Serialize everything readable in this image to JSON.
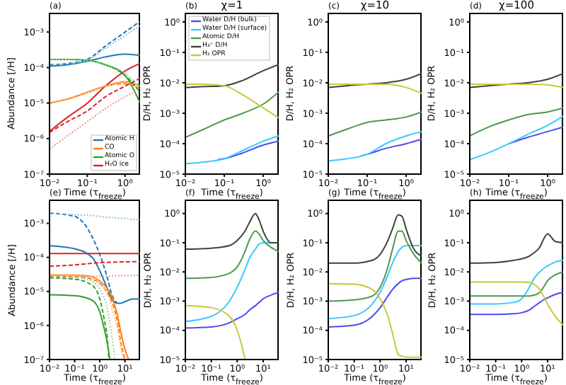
{
  "chart_data": [
    {
      "type": "line",
      "annotations": [
        "(a)"
      ],
      "xlabel": "Time (τ$_{freeze}$)",
      "ylabel": "Abundance [/H]",
      "log": "xy",
      "legend": "bottom right",
      "xlim": [
        0.01,
        2.5
      ],
      "xticks": [
        {
          "value": 0.01,
          "label": "10⁻²"
        },
        {
          "value": 0.1,
          "label": "10⁻¹"
        },
        {
          "value": 1,
          "label": "10⁰"
        }
      ],
      "ylim": [
        1e-07,
        0.0035
      ],
      "yticks": [
        {
          "value": 1e-07,
          "label": "10⁻⁷"
        },
        {
          "value": 1e-06,
          "label": "10⁻⁶"
        },
        {
          "value": 1e-05,
          "label": "10⁻⁵"
        },
        {
          "value": 0.0001,
          "label": "10⁻⁴"
        },
        {
          "value": 0.001,
          "label": "10⁻³"
        }
      ],
      "x": [
        0.01,
        0.03,
        0.1,
        0.3,
        1,
        2.5
      ],
      "series": [
        {
          "name": "Atomic H",
          "color": "#1f77b4",
          "values": [
            0.00011,
            0.00012,
            0.00015,
            0.0002,
            0.00024,
            0.00022
          ]
        },
        {
          "name": "CO",
          "color": "#ff7f0e",
          "values": [
            1e-05,
            1.3e-05,
            2e-05,
            3e-05,
            4e-05,
            3e-05
          ]
        },
        {
          "name": "Atomic O",
          "color": "#2ca02c",
          "values": [
            0.00017,
            0.00017,
            0.00016,
            0.00012,
            6e-05,
            1e-05
          ]
        },
        {
          "name": "H₂O ice",
          "color": "#d62728",
          "values": [
            1.6e-06,
            4e-06,
            1e-05,
            3e-05,
            8e-05,
            0.00013
          ]
        },
        {
          "color": "#1f77b4",
          "line_style": "dashed",
          "values": [
            0.00012,
            0.00013,
            0.00017,
            0.0004,
            0.001,
            0.002
          ]
        },
        {
          "color": "#8ec1e6",
          "line_style": "dotted",
          "values": [
            0.00012,
            0.00013,
            0.00016,
            0.00035,
            0.0008,
            0.0015
          ]
        },
        {
          "color": "#ff7f0e",
          "line_style": "dashed",
          "values": [
            1e-05,
            1.3e-05,
            2e-05,
            3e-05,
            3.5e-05,
            2.5e-05
          ]
        },
        {
          "color": "#ffbf86",
          "line_style": "dotted",
          "values": [
            1e-05,
            1.3e-05,
            2e-05,
            3e-05,
            3.8e-05,
            3.5e-05
          ]
        },
        {
          "color": "#2ca02c",
          "line_style": "dashed",
          "values": [
            0.00017,
            0.00017,
            0.00016,
            0.00012,
            6e-05,
            2e-05
          ]
        },
        {
          "color": "#96d294",
          "line_style": "dotted",
          "values": [
            0.00017,
            0.00017,
            0.00016,
            0.00012,
            7e-05,
            2.5e-05
          ]
        },
        {
          "color": "#d62728",
          "line_style": "dashed",
          "values": [
            1.5e-06,
            3e-06,
            6e-06,
            1.5e-05,
            3e-05,
            5e-05
          ]
        },
        {
          "color": "#eb9394",
          "line_style": "dotted",
          "values": [
            5e-07,
            1.2e-06,
            3e-06,
            7e-06,
            1.5e-05,
            2.5e-05
          ]
        }
      ]
    },
    {
      "type": "line",
      "title": "χ=1",
      "annotations": [
        "(b)"
      ],
      "xlabel": "Time (τ$_{freeze}$)",
      "ylabel": "D/H, H₂ OPR",
      "log": "xy",
      "legend": "top left",
      "xlim": [
        0.01,
        2.5
      ],
      "xticks": [
        {
          "value": 0.01,
          "label": "10⁻²"
        },
        {
          "value": 0.1,
          "label": "10⁻¹"
        },
        {
          "value": 1,
          "label": "10⁰"
        }
      ],
      "ylim": [
        1e-05,
        2
      ],
      "yticks": [
        {
          "value": 1e-05,
          "label": "10⁻⁵"
        },
        {
          "value": 0.0001,
          "label": "10⁻⁴"
        },
        {
          "value": 0.001,
          "label": "10⁻³"
        },
        {
          "value": 0.01,
          "label": "10⁻²"
        },
        {
          "value": 0.1,
          "label": "10⁻¹"
        },
        {
          "value": 1,
          "label": "10⁰"
        }
      ],
      "x": [
        0.01,
        0.03,
        0.1,
        0.3,
        1,
        2.5
      ],
      "series": [
        {
          "name": "Water D/H (bulk)",
          "color": "#4b4bf0",
          "x": [
            0.07,
            0.1,
            0.3,
            1,
            2.5
          ],
          "values": [
            3e-05,
            3.2e-05,
            5e-05,
            9e-05,
            0.00012
          ]
        },
        {
          "name": "Water D/H (surface)",
          "color": "#3cc8ff",
          "values": [
            2.2e-05,
            2.5e-05,
            3.2e-05,
            6e-05,
            0.00012,
            0.00018
          ]
        },
        {
          "name": "Atomic D/H",
          "color": "#4c9a4c",
          "values": [
            0.00016,
            0.0003,
            0.0006,
            0.001,
            0.002,
            0.005
          ]
        },
        {
          "name": "H₃⁺ D/H",
          "color": "#404040",
          "values": [
            0.007,
            0.0075,
            0.008,
            0.012,
            0.025,
            0.04
          ]
        },
        {
          "name": "H₂ OPR",
          "color": "#c8c83c",
          "values": [
            0.009,
            0.009,
            0.008,
            0.004,
            0.0015,
            0.0007
          ]
        }
      ]
    },
    {
      "type": "line",
      "title": "χ=10",
      "annotations": [
        "(c)"
      ],
      "xlabel": "Time (τ$_{freeze}$)",
      "ylabel": "D/H, H₂ OPR",
      "log": "xy",
      "xlim": [
        0.01,
        2.5
      ],
      "xticks": [
        {
          "value": 0.01,
          "label": "10⁻²"
        },
        {
          "value": 0.1,
          "label": "10⁻¹"
        },
        {
          "value": 1,
          "label": "10⁰"
        }
      ],
      "ylim": [
        1e-05,
        2
      ],
      "yticks": [
        {
          "value": 1e-05,
          "label": "10⁻⁵"
        },
        {
          "value": 0.0001,
          "label": "10⁻⁴"
        },
        {
          "value": 0.001,
          "label": "10⁻³"
        },
        {
          "value": 0.01,
          "label": "10⁻²"
        },
        {
          "value": 0.1,
          "label": "10⁻¹"
        },
        {
          "value": 1,
          "label": "10⁰"
        }
      ],
      "x": [
        0.01,
        0.03,
        0.1,
        0.3,
        1,
        2.5
      ],
      "series": [
        {
          "color": "#4b4bf0",
          "x": [
            0.07,
            0.1,
            0.3,
            1,
            2.5
          ],
          "values": [
            4e-05,
            4.5e-05,
            7e-05,
            0.0001,
            0.00014
          ]
        },
        {
          "color": "#3cc8ff",
          "values": [
            2.7e-05,
            3.2e-05,
            4.5e-05,
            0.0001,
            0.00018,
            0.00025
          ]
        },
        {
          "color": "#4c9a4c",
          "values": [
            0.00018,
            0.0003,
            0.0005,
            0.0006,
            0.00075,
            0.0011
          ]
        },
        {
          "color": "#404040",
          "values": [
            0.007,
            0.008,
            0.009,
            0.01,
            0.013,
            0.02
          ]
        },
        {
          "color": "#c8c83c",
          "values": [
            0.009,
            0.009,
            0.009,
            0.009,
            0.007,
            0.0045
          ]
        }
      ]
    },
    {
      "type": "line",
      "title": "χ=100",
      "annotations": [
        "(d)"
      ],
      "xlabel": "Time (τ$_{freeze}$)",
      "ylabel": "D/H, H₂ OPR",
      "log": "xy",
      "xlim": [
        0.01,
        2.5
      ],
      "xticks": [
        {
          "value": 0.01,
          "label": "10⁻²"
        },
        {
          "value": 0.1,
          "label": "10⁻¹"
        },
        {
          "value": 1,
          "label": "10⁰"
        }
      ],
      "ylim": [
        1e-05,
        2
      ],
      "yticks": [
        {
          "value": 1e-05,
          "label": "10⁻⁵"
        },
        {
          "value": 0.0001,
          "label": "10⁻⁴"
        },
        {
          "value": 0.001,
          "label": "10⁻³"
        },
        {
          "value": 0.01,
          "label": "10⁻²"
        },
        {
          "value": 0.1,
          "label": "10⁻¹"
        },
        {
          "value": 1,
          "label": "10⁰"
        }
      ],
      "x": [
        0.01,
        0.03,
        0.1,
        0.3,
        1,
        2.5
      ],
      "series": [
        {
          "color": "#4b4bf0",
          "x": [
            0.1,
            0.3,
            1,
            2.5
          ],
          "values": [
            0.0001,
            0.00016,
            0.00025,
            0.00035
          ]
        },
        {
          "color": "#3cc8ff",
          "values": [
            3e-05,
            5e-05,
            0.0001,
            0.0002,
            0.0004,
            0.0008
          ]
        },
        {
          "color": "#4c9a4c",
          "values": [
            0.00018,
            0.00035,
            0.0006,
            0.0009,
            0.0011,
            0.0015
          ]
        },
        {
          "color": "#404040",
          "values": [
            0.007,
            0.008,
            0.009,
            0.01,
            0.013,
            0.02
          ]
        },
        {
          "color": "#c8c83c",
          "values": [
            0.009,
            0.009,
            0.009,
            0.009,
            0.0085,
            0.007
          ]
        }
      ]
    },
    {
      "type": "line",
      "annotations": [
        "(e)"
      ],
      "xlabel": "Time (τ$_{freeze}$)",
      "ylabel": "Abundance [/H]",
      "log": "xy",
      "xlim": [
        0.01,
        40
      ],
      "xticks": [
        {
          "value": 0.01,
          "label": "10⁻²"
        },
        {
          "value": 0.1,
          "label": "10⁻¹"
        },
        {
          "value": 1,
          "label": "10⁰"
        },
        {
          "value": 10,
          "label": "10¹"
        }
      ],
      "ylim": [
        1e-07,
        0.005
      ],
      "yticks": [
        {
          "value": 1e-07,
          "label": "10⁻⁷"
        },
        {
          "value": 1e-06,
          "label": "10⁻⁶"
        },
        {
          "value": 1e-05,
          "label": "10⁻⁵"
        },
        {
          "value": 0.0001,
          "label": "10⁻⁴"
        },
        {
          "value": 0.001,
          "label": "10⁻³"
        }
      ],
      "x": [
        0.01,
        0.1,
        0.5,
        1,
        2,
        3,
        5,
        7,
        10,
        20,
        40
      ],
      "series": [
        {
          "color": "#1f77b4",
          "values": [
            0.00022,
            0.00018,
            0.0001,
            4e-05,
            1.2e-05,
            6e-06,
            4.5e-06,
            4.5e-06,
            5e-06,
            6e-06,
            6e-06
          ]
        },
        {
          "color": "#1f77b4",
          "line_style": "dashed",
          "x": [
            0.01,
            0.1,
            0.5,
            1,
            2,
            3,
            5
          ],
          "values": [
            0.002,
            0.0016,
            0.0004,
            0.00012,
            2.5e-05,
            8e-06,
            4.5e-06
          ]
        },
        {
          "color": "#8ec1e6",
          "line_style": "dotted",
          "values": [
            0.002,
            0.0018,
            0.0017,
            0.0016,
            0.0015,
            0.0015,
            0.0014,
            0.0014,
            0.0014,
            0.0013,
            0.0013
          ]
        },
        {
          "color": "#ff7f0e",
          "x": [
            0.01,
            0.1,
            0.5,
            1,
            2,
            3,
            5,
            7,
            10,
            14
          ],
          "values": [
            3e-05,
            3e-05,
            2.7e-05,
            2e-05,
            1.2e-05,
            7e-06,
            2e-06,
            6e-07,
            2e-07,
            1e-07
          ]
        },
        {
          "color": "#ff7f0e",
          "line_style": "dashed",
          "x": [
            0.01,
            0.1,
            0.5,
            1,
            2,
            3,
            5,
            7,
            10
          ],
          "values": [
            2.7e-05,
            2.7e-05,
            2.3e-05,
            1.7e-05,
            9e-06,
            5e-06,
            1.3e-06,
            3e-07,
            1e-07
          ]
        },
        {
          "color": "#ffbf86",
          "line_style": "dotted",
          "x": [
            0.01,
            0.1,
            0.5,
            1,
            2,
            3,
            5,
            7,
            9
          ],
          "values": [
            3.2e-05,
            3e-05,
            2.5e-05,
            1.8e-05,
            8e-06,
            3e-06,
            8e-07,
            2e-07,
            1e-07
          ]
        },
        {
          "color": "#2ca02c",
          "x": [
            0.01,
            0.1,
            0.5,
            1,
            1.5,
            2,
            2.5
          ],
          "values": [
            8e-06,
            7.5e-06,
            5.5e-06,
            2.5e-06,
            8e-07,
            3e-07,
            1e-07
          ]
        },
        {
          "color": "#2ca02c",
          "line_style": "dashed",
          "x": [
            0.01,
            0.1,
            0.5,
            1,
            1.5,
            2,
            2.3
          ],
          "values": [
            2.5e-05,
            2.3e-05,
            1.5e-05,
            6e-06,
            1.5e-06,
            4e-07,
            1e-07
          ]
        },
        {
          "color": "#96d294",
          "line_style": "dotted",
          "x": [
            0.01,
            0.1,
            0.5,
            1,
            2,
            3,
            4
          ],
          "values": [
            2.8e-05,
            2.6e-05,
            2e-05,
            1.2e-05,
            3e-06,
            5e-07,
            1e-07
          ]
        },
        {
          "color": "#d62728",
          "x": [
            0.01,
            1,
            40
          ],
          "values": [
            0.00013,
            0.00013,
            0.00013
          ]
        },
        {
          "color": "#d62728",
          "line_style": "dashed",
          "x": [
            0.01,
            0.1,
            1,
            40
          ],
          "values": [
            5.5e-05,
            6e-05,
            7e-05,
            7.5e-05
          ]
        },
        {
          "color": "#eb9394",
          "line_style": "dotted",
          "x": [
            0.01,
            1,
            40
          ],
          "values": [
            2.5e-05,
            2.8e-05,
            3e-05
          ]
        }
      ]
    },
    {
      "type": "line",
      "annotations": [
        "(f)"
      ],
      "xlabel": "Time (τ$_{freeze}$)",
      "ylabel": "D/H, H₂ OPR",
      "log": "xy",
      "xlim": [
        0.01,
        40
      ],
      "xticks": [
        {
          "value": 0.01,
          "label": "10⁻²"
        },
        {
          "value": 0.1,
          "label": "10⁻¹"
        },
        {
          "value": 1,
          "label": "10⁰"
        },
        {
          "value": 10,
          "label": "10¹"
        }
      ],
      "ylim": [
        1e-05,
        3
      ],
      "yticks": [
        {
          "value": 1e-05,
          "label": "10⁻⁵"
        },
        {
          "value": 0.0001,
          "label": "10⁻⁴"
        },
        {
          "value": 0.001,
          "label": "10⁻³"
        },
        {
          "value": 0.01,
          "label": "10⁻²"
        },
        {
          "value": 0.1,
          "label": "10⁻¹"
        },
        {
          "value": 1,
          "label": "10⁰"
        }
      ],
      "x": [
        0.01,
        0.1,
        0.5,
        1,
        2,
        3,
        5,
        7,
        10,
        20,
        40
      ],
      "series": [
        {
          "color": "#4b4bf0",
          "values": [
            0.00012,
            0.00013,
            0.00018,
            0.00025,
            0.00035,
            0.0005,
            0.0007,
            0.0009,
            0.0012,
            0.0016,
            0.002
          ]
        },
        {
          "color": "#3cc8ff",
          "values": [
            0.0002,
            0.0003,
            0.001,
            0.003,
            0.012,
            0.03,
            0.06,
            0.09,
            0.1,
            0.1,
            null
          ]
        },
        {
          "color": "#4c9a4c",
          "values": [
            0.006,
            0.0065,
            0.009,
            0.015,
            0.05,
            0.13,
            0.25,
            0.2,
            0.12,
            0.07,
            0.05
          ]
        },
        {
          "color": "#404040",
          "values": [
            0.06,
            0.065,
            0.08,
            0.12,
            0.25,
            0.5,
            1,
            0.6,
            0.25,
            0.1,
            0.1
          ]
        },
        {
          "color": "#c8c83c",
          "x": [
            0.01,
            0.1,
            0.5,
            1,
            1.5,
            2
          ],
          "values": [
            0.0007,
            0.0006,
            0.0003,
            0.0001,
            3e-05,
            1e-05
          ]
        }
      ]
    },
    {
      "type": "line",
      "annotations": [
        "(g)"
      ],
      "xlabel": "Time (τ$_{freeze}$)",
      "ylabel": "D/H, H₂ OPR",
      "log": "xy",
      "xlim": [
        0.01,
        40
      ],
      "xticks": [
        {
          "value": 0.01,
          "label": "10⁻²"
        },
        {
          "value": 0.1,
          "label": "10⁻¹"
        },
        {
          "value": 1,
          "label": "10⁰"
        },
        {
          "value": 10,
          "label": "10¹"
        }
      ],
      "ylim": [
        1e-05,
        3
      ],
      "yticks": [
        {
          "value": 1e-05,
          "label": "10⁻⁵"
        },
        {
          "value": 0.0001,
          "label": "10⁻⁴"
        },
        {
          "value": 0.001,
          "label": "10⁻³"
        },
        {
          "value": 0.01,
          "label": "10⁻²"
        },
        {
          "value": 0.1,
          "label": "10⁻¹"
        },
        {
          "value": 1,
          "label": "10⁰"
        }
      ],
      "x": [
        0.01,
        0.1,
        0.5,
        1,
        2,
        3,
        5,
        7,
        10,
        20,
        40
      ],
      "series": [
        {
          "color": "#4b4bf0",
          "values": [
            0.00013,
            0.00015,
            0.0003,
            0.0006,
            0.0015,
            0.0025,
            0.004,
            0.005,
            0.0055,
            0.006,
            0.006
          ]
        },
        {
          "color": "#3cc8ff",
          "values": [
            0.00025,
            0.00032,
            0.0008,
            0.002,
            0.008,
            0.02,
            0.05,
            0.07,
            0.08,
            0.08,
            0.08
          ]
        },
        {
          "color": "#4c9a4c",
          "values": [
            0.001,
            0.0011,
            0.0015,
            0.003,
            0.015,
            0.06,
            0.25,
            0.25,
            0.12,
            0.04,
            0.02
          ]
        },
        {
          "color": "#404040",
          "values": [
            0.02,
            0.02,
            0.025,
            0.04,
            0.12,
            0.3,
            0.9,
            0.8,
            0.3,
            0.06,
            0.035
          ]
        },
        {
          "color": "#c8c83c",
          "values": [
            0.004,
            0.0038,
            0.0025,
            0.0012,
            0.0003,
            8e-05,
            1.5e-05,
            1.3e-05,
            1.2e-05,
            1.2e-05,
            1.2e-05
          ]
        }
      ]
    },
    {
      "type": "line",
      "annotations": [
        "(h)"
      ],
      "xlabel": "Time (τ$_{freeze}$)",
      "ylabel": "D/H, H₂ OPR",
      "log": "xy",
      "xlim": [
        0.01,
        40
      ],
      "xticks": [
        {
          "value": 0.01,
          "label": "10⁻²"
        },
        {
          "value": 0.1,
          "label": "10⁻¹"
        },
        {
          "value": 1,
          "label": "10⁰"
        },
        {
          "value": 10,
          "label": "10¹"
        }
      ],
      "ylim": [
        1e-05,
        3
      ],
      "yticks": [
        {
          "value": 1e-05,
          "label": "10⁻⁵"
        },
        {
          "value": 0.0001,
          "label": "10⁻⁴"
        },
        {
          "value": 0.001,
          "label": "10⁻³"
        },
        {
          "value": 0.01,
          "label": "10⁻²"
        },
        {
          "value": 0.1,
          "label": "10⁻¹"
        },
        {
          "value": 1,
          "label": "10⁰"
        }
      ],
      "x": [
        0.01,
        0.1,
        0.5,
        1,
        2,
        3,
        5,
        7,
        10,
        20,
        40
      ],
      "series": [
        {
          "color": "#4b4bf0",
          "values": [
            0.00035,
            0.00035,
            0.00037,
            0.0004,
            0.0005,
            0.00065,
            0.0009,
            0.0011,
            0.0013,
            0.0017,
            0.002
          ]
        },
        {
          "color": "#3cc8ff",
          "values": [
            0.0008,
            0.0008,
            0.0009,
            0.0012,
            0.003,
            0.006,
            0.01,
            0.013,
            0.016,
            0.022,
            0.025
          ]
        },
        {
          "color": "#4c9a4c",
          "values": [
            0.0015,
            0.0015,
            0.0015,
            0.0015,
            0.0015,
            0.0016,
            0.002,
            0.003,
            0.005,
            0.008,
            0.01
          ]
        },
        {
          "color": "#404040",
          "values": [
            0.02,
            0.021,
            0.025,
            0.028,
            0.035,
            0.045,
            0.07,
            0.13,
            0.2,
            0.11,
            0.1
          ]
        },
        {
          "color": "#c8c83c",
          "values": [
            0.0045,
            0.0045,
            0.0045,
            0.0045,
            0.0043,
            0.0038,
            0.0025,
            0.0015,
            0.0008,
            0.0003,
            0.00015
          ]
        }
      ]
    }
  ]
}
